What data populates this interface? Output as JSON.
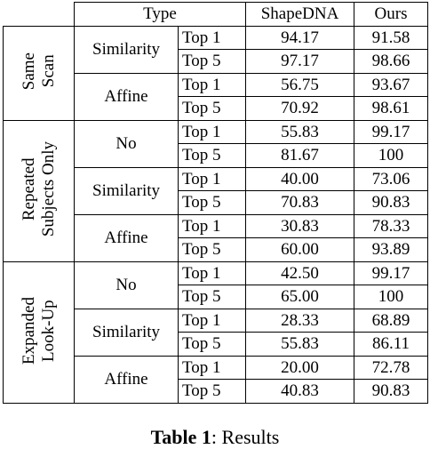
{
  "table": {
    "header": {
      "type": "Type",
      "col_shapedna": "ShapeDNA",
      "col_ours": "Ours"
    },
    "groups": [
      {
        "label_lines": [
          "Same",
          "Scan"
        ],
        "subgroups": [
          {
            "label": "Similarity",
            "rows": [
              {
                "k": "Top 1",
                "shapedna": "94.17",
                "ours": "91.58",
                "bold": "shapedna"
              },
              {
                "k": "Top 5",
                "shapedna": "97.17",
                "ours": "98.66",
                "bold": "ours"
              }
            ]
          },
          {
            "label": "Affine",
            "rows": [
              {
                "k": "Top 1",
                "shapedna": "56.75",
                "ours": "93.67",
                "bold": "ours"
              },
              {
                "k": "Top 5",
                "shapedna": "70.92",
                "ours": "98.61",
                "bold": "ours"
              }
            ]
          }
        ]
      },
      {
        "label_lines": [
          "Repeated",
          "Subjects Only"
        ],
        "subgroups": [
          {
            "label": "No",
            "rows": [
              {
                "k": "Top 1",
                "shapedna": "55.83",
                "ours": "99.17",
                "bold": "ours"
              },
              {
                "k": "Top 5",
                "shapedna": "81.67",
                "ours": "100",
                "bold": "ours"
              }
            ]
          },
          {
            "label": "Similarity",
            "rows": [
              {
                "k": "Top 1",
                "shapedna": "40.00",
                "ours": "73.06",
                "bold": "ours"
              },
              {
                "k": "Top 5",
                "shapedna": "70.83",
                "ours": "90.83",
                "bold": "ours"
              }
            ]
          },
          {
            "label": "Affine",
            "rows": [
              {
                "k": "Top 1",
                "shapedna": "30.83",
                "ours": "78.33",
                "bold": "ours"
              },
              {
                "k": "Top 5",
                "shapedna": "60.00",
                "ours": "93.89",
                "bold": "ours"
              }
            ]
          }
        ]
      },
      {
        "label_lines": [
          "Expanded",
          "Look-Up"
        ],
        "subgroups": [
          {
            "label": "No",
            "rows": [
              {
                "k": "Top 1",
                "shapedna": "42.50",
                "ours": "99.17",
                "bold": "ours"
              },
              {
                "k": "Top 5",
                "shapedna": "65.00",
                "ours": "100",
                "bold": "ours"
              }
            ]
          },
          {
            "label": "Similarity",
            "rows": [
              {
                "k": "Top 1",
                "shapedna": "28.33",
                "ours": "68.89",
                "bold": "ours"
              },
              {
                "k": "Top 5",
                "shapedna": "55.83",
                "ours": "86.11",
                "bold": "ours"
              }
            ]
          },
          {
            "label": "Affine",
            "rows": [
              {
                "k": "Top 1",
                "shapedna": "20.00",
                "ours": "72.78",
                "bold": "ours"
              },
              {
                "k": "Top 5",
                "shapedna": "40.83",
                "ours": "90.83",
                "bold": "ours"
              }
            ]
          }
        ]
      }
    ]
  },
  "caption": {
    "label": "Table 1",
    "text": "Results"
  }
}
